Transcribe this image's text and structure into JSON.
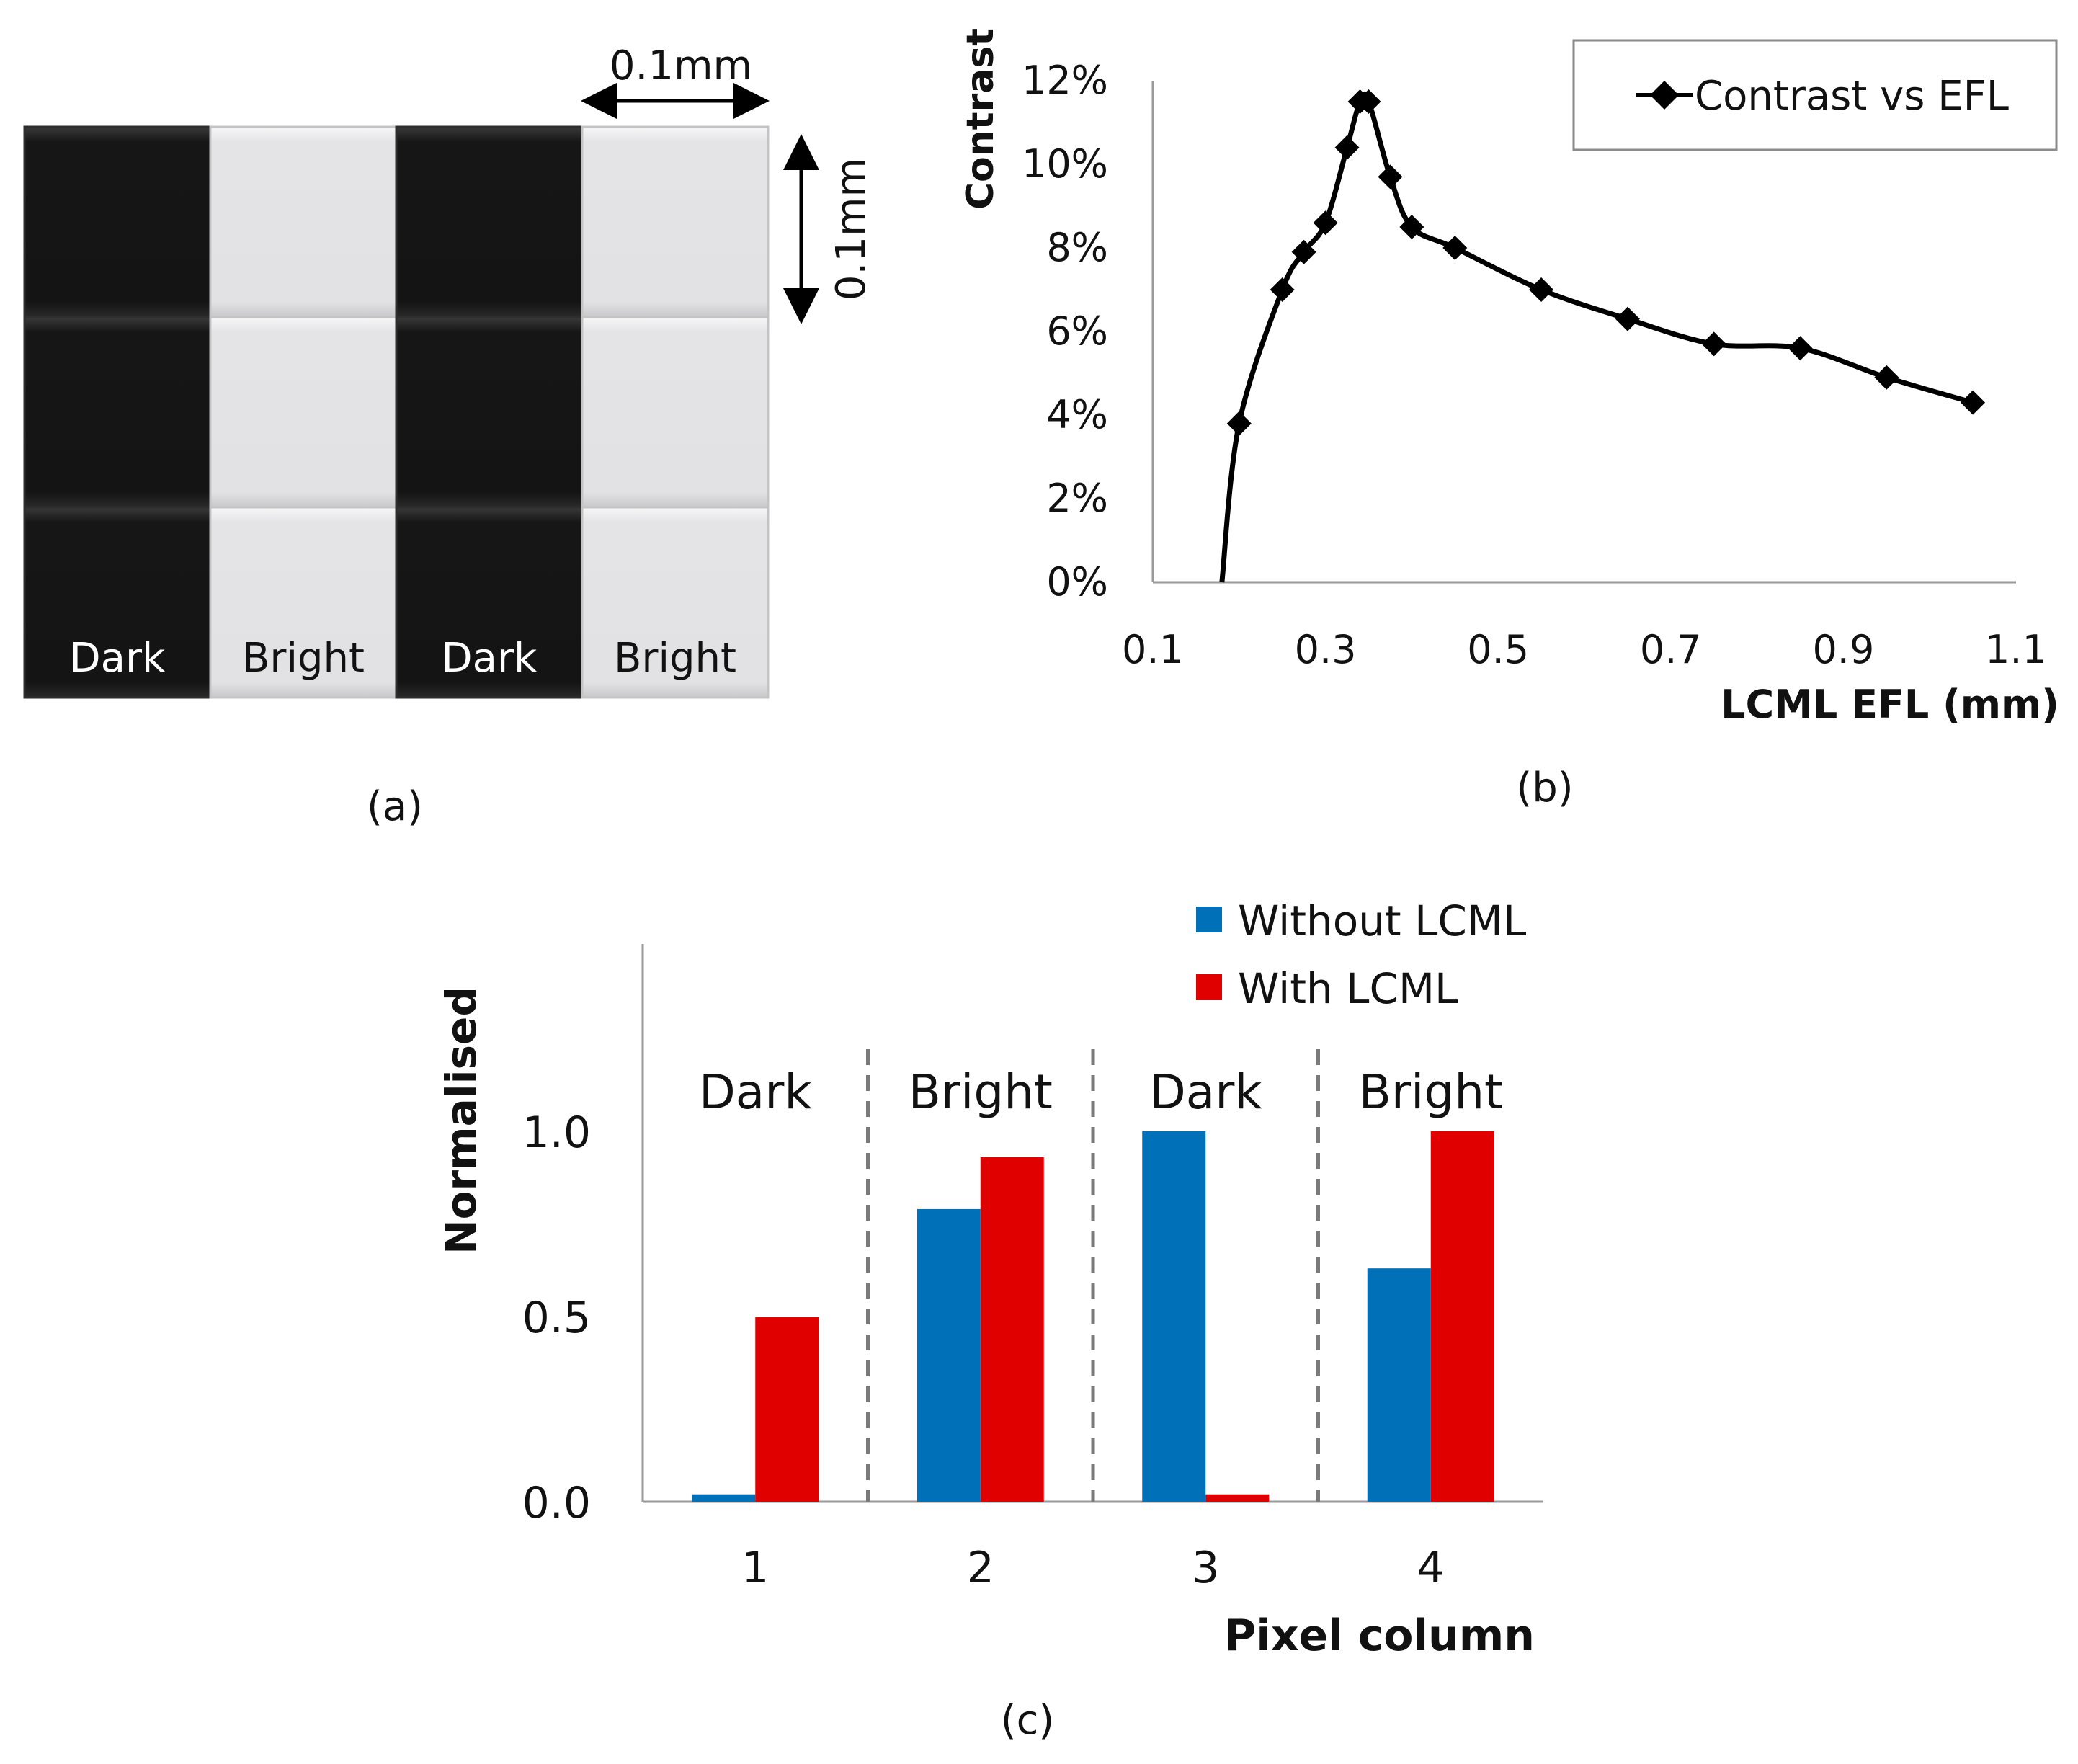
{
  "panel_a": {
    "caption": "(a)",
    "dim_horizontal": "0.1mm",
    "dim_vertical": "0.1mm",
    "columns": [
      "Dark",
      "Bright",
      "Dark",
      "Bright"
    ],
    "colors": {
      "dark": "#141414",
      "bright": "#e3e3e5"
    }
  },
  "chart_data": [
    {
      "type": "line",
      "panel": "(b)",
      "title": "",
      "xlabel": "LCML EFL (mm)",
      "ylabel": "Contrast",
      "legend": "Contrast vs EFL",
      "legend_position": "top-right",
      "xlim": [
        0.1,
        1.1
      ],
      "ylim": [
        0,
        12
      ],
      "xticks": [
        "0.1",
        "0.3",
        "0.5",
        "0.7",
        "0.9",
        "1.1"
      ],
      "yticks": [
        "0%",
        "2%",
        "4%",
        "6%",
        "8%",
        "10%",
        "12%"
      ],
      "curve_start": {
        "x": 0.18,
        "y": 0
      },
      "x": [
        0.2,
        0.25,
        0.275,
        0.3,
        0.325,
        0.34,
        0.35,
        0.375,
        0.4,
        0.45,
        0.55,
        0.65,
        0.75,
        0.85,
        0.95,
        1.05
      ],
      "y": [
        3.8,
        7.0,
        7.9,
        8.6,
        10.4,
        11.5,
        11.5,
        9.7,
        8.5,
        8.0,
        7.0,
        6.3,
        5.7,
        5.6,
        4.9,
        4.3
      ],
      "color": "#000000"
    },
    {
      "type": "bar",
      "panel": "(c)",
      "title": "",
      "xlabel": "Pixel column",
      "ylabel": "Normalised",
      "categories": [
        "1",
        "2",
        "3",
        "4"
      ],
      "category_labels": [
        "Dark",
        "Bright",
        "Dark",
        "Bright"
      ],
      "yticks": [
        "0.0",
        "0.5",
        "1.0"
      ],
      "ylim": [
        0,
        1.5
      ],
      "legend_position": "top-right",
      "series": [
        {
          "name": "Without LCML",
          "color": "#0070b8",
          "values": [
            0.02,
            0.79,
            1.0,
            0.63
          ]
        },
        {
          "name": "With LCML",
          "color": "#e00000",
          "values": [
            0.5,
            0.93,
            0.02,
            1.0
          ]
        }
      ]
    }
  ]
}
